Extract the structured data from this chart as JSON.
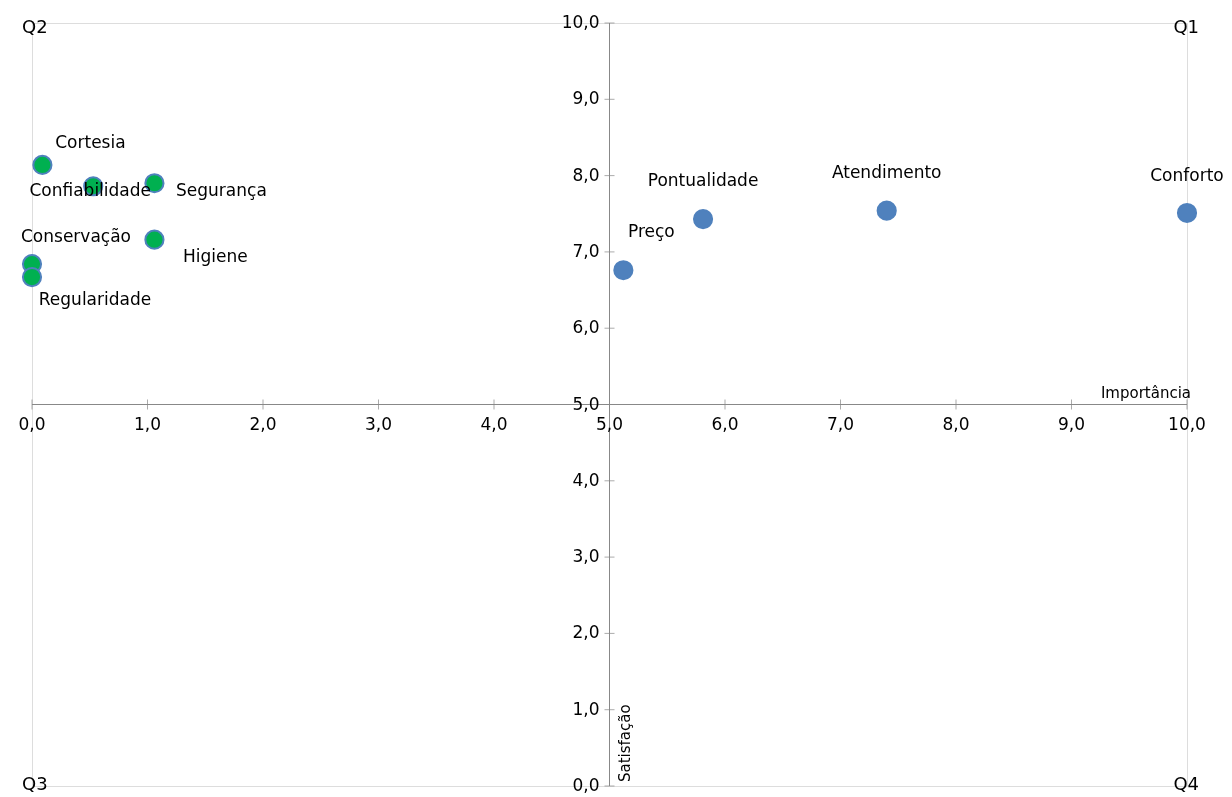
{
  "chart_data": {
    "type": "scatter",
    "xlabel": "Importância",
    "ylabel": "Satisfação",
    "xlim": [
      0,
      10
    ],
    "ylim": [
      0,
      10
    ],
    "xticks": [
      {
        "value": 0,
        "label": "0,0"
      },
      {
        "value": 1,
        "label": "1,0"
      },
      {
        "value": 2,
        "label": "2,0"
      },
      {
        "value": 3,
        "label": "3,0"
      },
      {
        "value": 4,
        "label": "4,0"
      },
      {
        "value": 5,
        "label": "5,0"
      },
      {
        "value": 6,
        "label": "6,0"
      },
      {
        "value": 7,
        "label": "7,0"
      },
      {
        "value": 8,
        "label": "8,0"
      },
      {
        "value": 9,
        "label": "9,0"
      },
      {
        "value": 10,
        "label": "10,0"
      }
    ],
    "yticks": [
      {
        "value": 0,
        "label": "0,0"
      },
      {
        "value": 1,
        "label": "1,0"
      },
      {
        "value": 2,
        "label": "2,0"
      },
      {
        "value": 3,
        "label": "3,0"
      },
      {
        "value": 4,
        "label": "4,0"
      },
      {
        "value": 5,
        "label": "5,0"
      },
      {
        "value": 6,
        "label": "6,0"
      },
      {
        "value": 7,
        "label": "7,0"
      },
      {
        "value": 8,
        "label": "8,0"
      },
      {
        "value": 9,
        "label": "9,0"
      },
      {
        "value": 10,
        "label": "10,0"
      }
    ],
    "series": [
      {
        "color": "#00b050",
        "x": [
          0.09,
          0.53,
          1.06,
          1.06,
          0.0,
          0.0
        ],
        "values": [
          8.14,
          7.86,
          7.9,
          7.16,
          6.84,
          6.67
        ]
      },
      {
        "color": "#4f81bd",
        "x": [
          5.12,
          5.81,
          7.4,
          10.0
        ],
        "values": [
          6.76,
          7.43,
          7.54,
          7.51
        ]
      }
    ],
    "annotations": [
      "Q1",
      "Q2",
      "Q3",
      "Q4",
      {
        "text": "Cortesia",
        "x": 0.09,
        "y": 8.14
      },
      {
        "text": "Confiabilidade",
        "x": 0.53,
        "y": 7.86
      },
      {
        "text": "Segurança",
        "x": 1.06,
        "y": 7.9
      },
      {
        "text": "Higiene",
        "x": 1.06,
        "y": 7.16
      },
      {
        "text": "Conservação",
        "x": 0.0,
        "y": 6.84
      },
      {
        "text": "Regularidade",
        "x": 0.0,
        "y": 6.67
      },
      {
        "text": "Preço",
        "x": 5.12,
        "y": 6.76
      },
      {
        "text": "Pontualidade",
        "x": 5.81,
        "y": 7.43
      },
      {
        "text": "Atendimento",
        "x": 7.4,
        "y": 7.54
      },
      {
        "text": "Conforto",
        "x": 10.0,
        "y": 7.51
      }
    ],
    "grid": false,
    "legend": false,
    "marker": "circle"
  }
}
